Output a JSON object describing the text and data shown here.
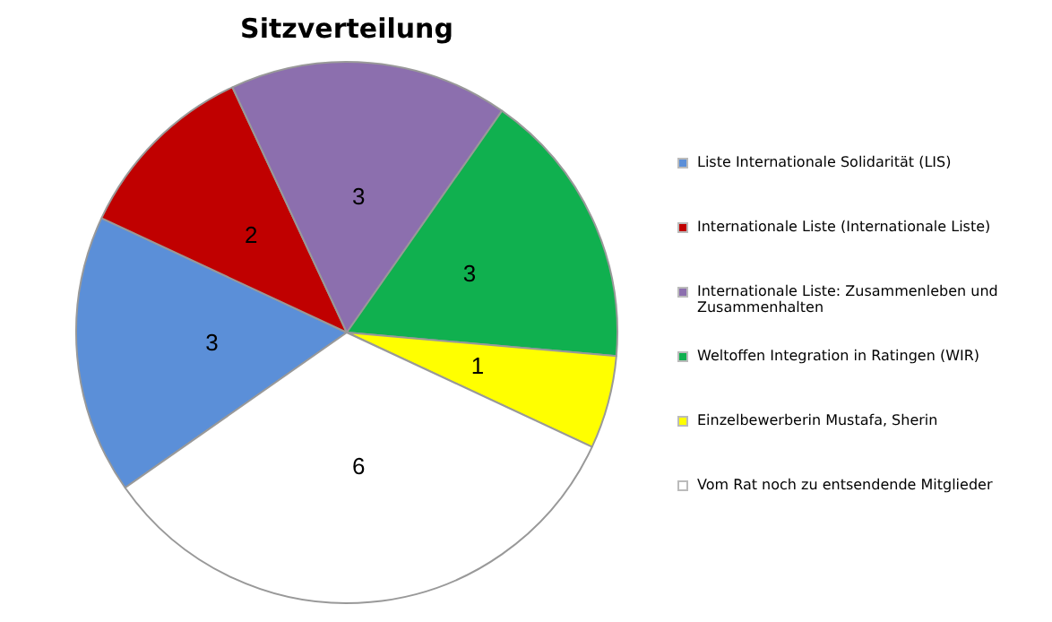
{
  "chart_data": {
    "type": "pie",
    "title": "Sitzverteilung",
    "categories": [
      "Liste Internationale Solidarität (LIS)",
      "Internationale Liste (Internationale Liste)",
      "Internationale Liste: Zusammenleben und Zusammenhalten",
      "Weltoffen Integration in Ratingen (WIR)",
      "Einzelbewerberin Mustafa, Sherin",
      "Vom Rat noch zu entsendende Mitglieder"
    ],
    "values": [
      3,
      2,
      3,
      3,
      1,
      6
    ],
    "colors": [
      "#5b8fd8",
      "#c00000",
      "#8c6fae",
      "#10b04f",
      "#ffff00",
      "#ffffff"
    ],
    "data_labels": true,
    "legend": "right"
  }
}
